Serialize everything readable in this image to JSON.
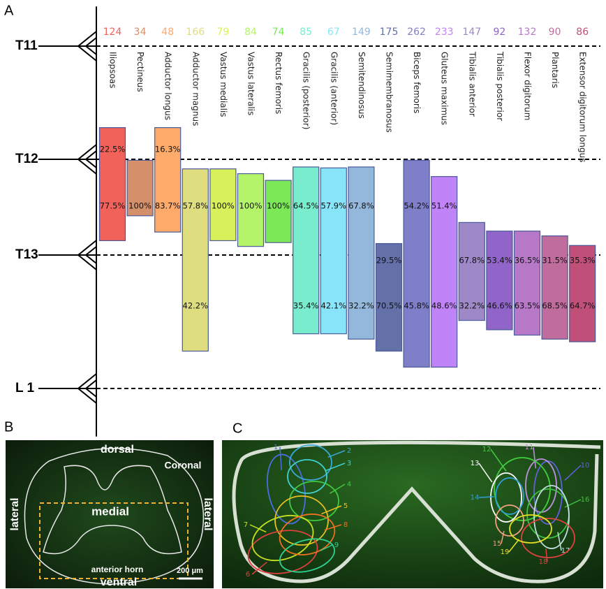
{
  "panel_labels": [
    "A",
    "B",
    "C"
  ],
  "chart_data": {
    "type": "floating-bar",
    "categories": [
      "Iliopsoas",
      "Pectineus",
      "Adductor longus",
      "Adductor magnus",
      "Vastus medialis",
      "Vastus lateralis",
      "Rectus femoris",
      "Gracilis (posterior)",
      "Gracilis (anterior)",
      "Semitendinosus",
      "Semimembranosus",
      "Biceps femoris",
      "Gluteus maximus",
      "Tibialis anterior",
      "Tibialis posterior",
      "Flexor digitorum",
      "Plantaris",
      "Extensor digitorum longus"
    ],
    "counts": [
      124,
      34,
      48,
      166,
      79,
      84,
      74,
      85,
      67,
      149,
      175,
      262,
      233,
      147,
      92,
      132,
      90,
      86
    ],
    "colors": [
      "#f0625a",
      "#d4906a",
      "#fdaa6b",
      "#dede80",
      "#d8f05a",
      "#b4f46a",
      "#7ce858",
      "#78eccc",
      "#88e4f8",
      "#94b8dc",
      "#6470a8",
      "#7f7ec8",
      "#c184f8",
      "#9e88c8",
      "#9064c8",
      "#b878c8",
      "#c06c9c",
      "#c05078"
    ],
    "starts": [
      11.72,
      12.01,
      11.72,
      12.1,
      12.1,
      12.15,
      12.22,
      12.08,
      12.09,
      12.08,
      12.88,
      12.01,
      12.18,
      12.66,
      12.75,
      12.75,
      12.8,
      12.9
    ],
    "ends": [
      12.85,
      12.59,
      12.76,
      13.72,
      12.85,
      12.91,
      12.87,
      13.59,
      13.59,
      13.63,
      13.72,
      13.84,
      13.84,
      13.49,
      13.56,
      13.6,
      13.63,
      13.65
    ],
    "ylim": [
      10.65,
      14.36
    ],
    "yticks": [
      {
        "value": 11,
        "label": "T11"
      },
      {
        "value": 12,
        "label": "T12"
      },
      {
        "value": 13,
        "label": "T13"
      },
      {
        "value": 14,
        "label": "L 1"
      }
    ],
    "percent_rows": [
      {
        "values": [
          22.5,
          null,
          16.3,
          null,
          null,
          null,
          null,
          null,
          null,
          null,
          null,
          null,
          null,
          null,
          null,
          null,
          null,
          null
        ],
        "value_labels": [
          "22.5%",
          null,
          "16.3%",
          null,
          null,
          null,
          null,
          null,
          null,
          null,
          null,
          null,
          null,
          null,
          null,
          null,
          null,
          null
        ]
      },
      {
        "values": [
          77.5,
          100,
          83.7,
          57.8,
          100,
          100,
          100,
          64.5,
          57.9,
          67.8,
          29.5,
          54.2,
          51.4,
          67.8,
          53.4,
          36.5,
          31.5,
          35.3
        ],
        "value_labels": [
          "77.5%",
          "100%",
          "83.7%",
          "57.8%",
          "100%",
          "100%",
          "100%",
          "64.5%",
          "57.9%",
          "67.8%",
          "29.5%",
          "54.2%",
          "51.4%",
          "67.8%",
          "53.4%",
          "36.5%",
          "31.5%",
          "35.3%"
        ]
      },
      {
        "values": [
          null,
          null,
          null,
          42.2,
          null,
          null,
          null,
          35.4,
          42.1,
          32.2,
          70.5,
          45.8,
          48.6,
          32.2,
          46.6,
          63.5,
          68.5,
          64.7
        ],
        "value_labels": [
          null,
          null,
          null,
          "42.2%",
          null,
          null,
          null,
          "35.4%",
          "42.1%",
          "32.2%",
          "70.5%",
          "45.8%",
          "48.6%",
          "32.2%",
          "46.6%",
          "63.5%",
          "68.5%",
          "64.7%"
        ]
      }
    ]
  },
  "panel_b": {
    "dorsal": "dorsal",
    "coronal": "Coronal",
    "lateral_left": "lateral",
    "lateral_right": "lateral",
    "medial": "medial",
    "anterior_horn": "anterior horn",
    "ventral": "ventral",
    "scale_bar": "200 μm"
  },
  "panel_c": {
    "labels": [
      "1",
      "2",
      "3",
      "4",
      "5",
      "6",
      "7",
      "8",
      "9",
      "10",
      "11",
      "12",
      "13",
      "14",
      "15",
      "16",
      "17",
      "18",
      "19"
    ]
  }
}
